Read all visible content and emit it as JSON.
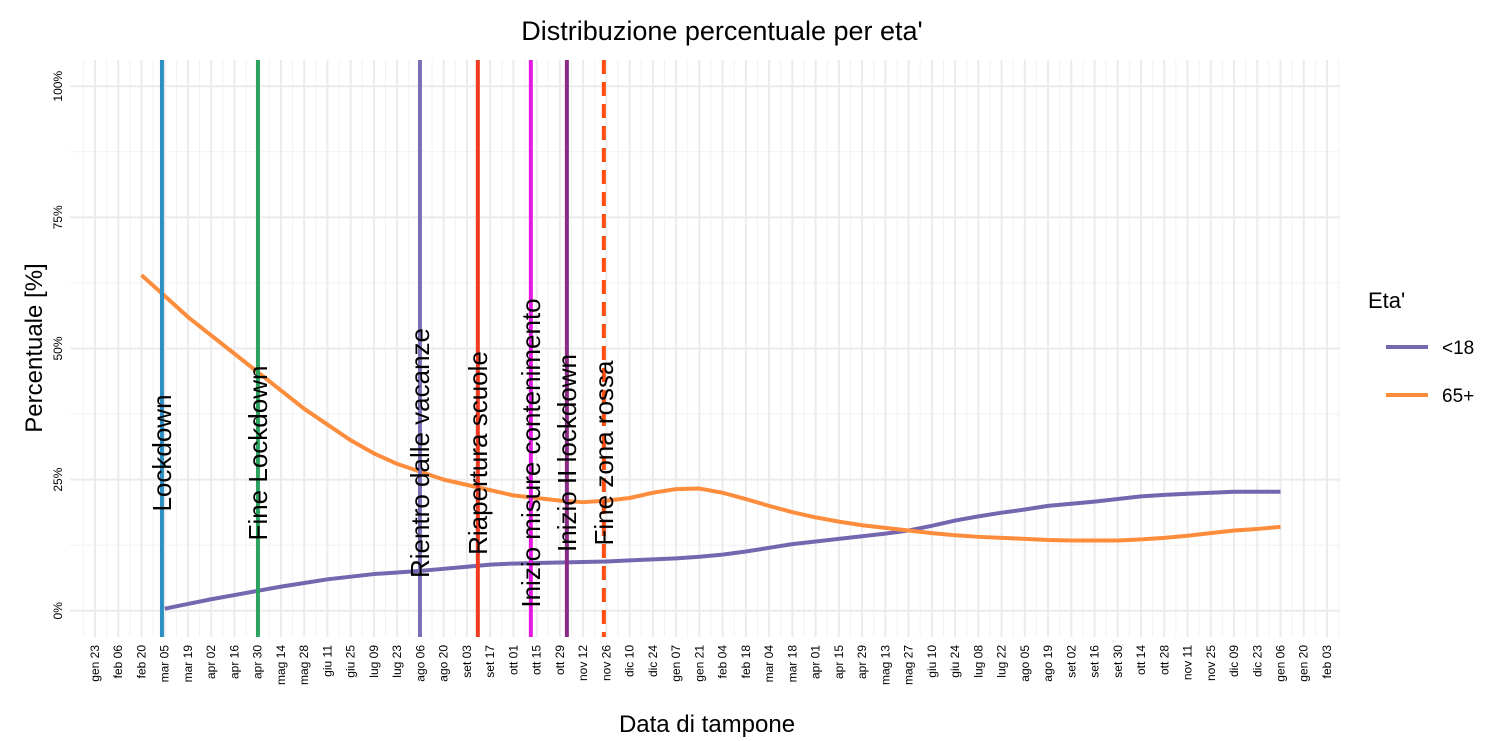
{
  "chart_data": {
    "type": "line",
    "title": "Distribuzione percentuale per eta'",
    "x_label": "Data di tampone",
    "y_label": "Percentuale [%]",
    "legend_title": "Eta'",
    "legend": "right",
    "grid": true,
    "categories": [
      "gen 23",
      "feb 06",
      "feb 20",
      "mar 05",
      "mar 19",
      "apr 02",
      "apr 16",
      "apr 30",
      "mag 14",
      "mag 28",
      "giu 11",
      "giu 25",
      "lug 09",
      "lug 23",
      "ago 06",
      "ago 20",
      "set 03",
      "set 17",
      "ott 01",
      "ott 15",
      "ott 29",
      "nov 12",
      "nov 26",
      "dic 10",
      "dic 24",
      "gen 07",
      "gen 21",
      "feb 04",
      "feb 18",
      "mar 04",
      "mar 18",
      "apr 01",
      "apr 15",
      "apr 29",
      "mag 13",
      "mag 27",
      "giu 10",
      "giu 24",
      "lug 08",
      "lug 22",
      "ago 05",
      "ago 19",
      "set 02",
      "set 16",
      "set 30",
      "ott 14",
      "ott 28",
      "nov 11",
      "nov 25",
      "dic 09",
      "dic 23",
      "gen 06",
      "gen 20",
      "feb 03"
    ],
    "series": [
      {
        "name": "<18",
        "color": "#7467b0",
        "values": [
          null,
          null,
          null,
          0.4,
          1.3,
          2.2,
          3,
          3.8,
          4.6,
          5.3,
          6,
          6.5,
          7,
          7.3,
          7.6,
          8,
          8.4,
          8.8,
          9,
          9.1,
          9.2,
          9.3,
          9.4,
          9.6,
          9.8,
          10,
          10.3,
          10.7,
          11.3,
          12,
          12.7,
          13.2,
          13.7,
          14.2,
          14.7,
          15.3,
          16.2,
          17.2,
          18,
          18.7,
          19.3,
          20,
          20.4,
          20.8,
          21.3,
          21.8,
          22.1,
          22.3,
          22.5,
          22.7,
          22.7,
          22.7,
          null,
          null
        ]
      },
      {
        "name": "65+",
        "color": "#fd8d3c",
        "values": [
          null,
          null,
          64,
          60,
          56,
          52.5,
          49,
          45.5,
          42,
          38.5,
          35.5,
          32.5,
          30,
          28,
          26.5,
          25,
          24,
          23,
          22,
          21.5,
          21,
          20.7,
          21,
          21.5,
          22.5,
          23.2,
          23.3,
          22.5,
          21.3,
          20,
          18.8,
          17.8,
          17,
          16.3,
          15.8,
          15.3,
          14.8,
          14.4,
          14.1,
          13.9,
          13.7,
          13.5,
          13.4,
          13.4,
          13.4,
          13.6,
          13.9,
          14.3,
          14.8,
          15.3,
          15.6,
          16,
          null,
          null
        ]
      }
    ],
    "annotations": [
      {
        "label": "Lockdown",
        "x": 2.88,
        "color": "#2f8fc4",
        "dashed": false
      },
      {
        "label": "Fine Lockdown",
        "x": 7.01,
        "color": "#2ca25f",
        "dashed": false
      },
      {
        "label": "Rientro dalle vacanze",
        "x": 13.98,
        "color": "#7b6fb5",
        "dashed": false
      },
      {
        "label": "Riapertura scuole",
        "x": 16.47,
        "color": "#f03b20",
        "dashed": false
      },
      {
        "label": "Inizio misure contenimento",
        "x": 18.75,
        "color": "#e41ae4",
        "dashed": false
      },
      {
        "label": "Inizio II lockdown",
        "x": 20.3,
        "color": "#8b2a84",
        "dashed": false
      },
      {
        "label": "Fine zona rossa",
        "x": 21.89,
        "color": "#ff4e11",
        "dashed": true
      }
    ],
    "ylim": [
      -5,
      105
    ],
    "yticks": [
      {
        "value": 0,
        "label": "0%"
      },
      {
        "value": 25,
        "label": "25%"
      },
      {
        "value": 50,
        "label": "50%"
      },
      {
        "value": 75,
        "label": "75%"
      },
      {
        "value": 100,
        "label": "100%"
      }
    ]
  }
}
